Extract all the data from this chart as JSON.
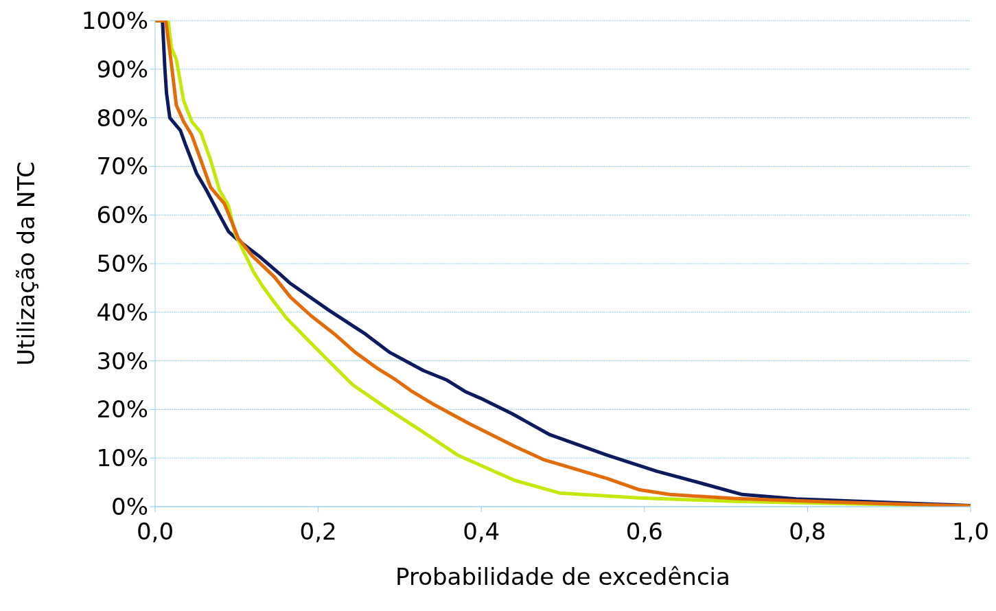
{
  "chart_data": {
    "type": "line",
    "xlabel": "Probabilidade de excedência",
    "ylabel": "Utilização da NTC",
    "xlim": [
      0,
      1
    ],
    "xticks": [
      {
        "value": 0,
        "label": "0,0"
      },
      {
        "value": 0.2,
        "label": "0,2"
      },
      {
        "value": 0.4,
        "label": "0,4"
      },
      {
        "value": 0.6,
        "label": "0,6"
      },
      {
        "value": 0.8,
        "label": "0,8"
      },
      {
        "value": 1,
        "label": "1,0"
      }
    ],
    "ylim": [
      0,
      100
    ],
    "yticks": [
      {
        "value": 0,
        "label": "0%"
      },
      {
        "value": 10,
        "label": "10%"
      },
      {
        "value": 20,
        "label": "20%"
      },
      {
        "value": 30,
        "label": "30%"
      },
      {
        "value": 40,
        "label": "40%"
      },
      {
        "value": 50,
        "label": "50%"
      },
      {
        "value": 60,
        "label": "60%"
      },
      {
        "value": 70,
        "label": "70%"
      },
      {
        "value": 80,
        "label": "80%"
      },
      {
        "value": 90,
        "label": "90%"
      },
      {
        "value": 100,
        "label": "100%"
      }
    ],
    "grid": "y",
    "series": [
      {
        "color": "#0d1a5e",
        "x": [
          0,
          0.009,
          0.012,
          0.014,
          0.018,
          0.031,
          0.037,
          0.051,
          0.062,
          0.079,
          0.09,
          0.102,
          0.127,
          0.152,
          0.166,
          0.214,
          0.258,
          0.287,
          0.329,
          0.357,
          0.38,
          0.399,
          0.438,
          0.484,
          0.554,
          0.615,
          0.67,
          0.72,
          0.786,
          0.863,
          1
        ],
        "values": [
          100,
          100,
          90,
          85,
          80,
          77.4,
          74.6,
          68.5,
          65.4,
          60,
          56.6,
          54.8,
          51.6,
          48,
          45.9,
          40.3,
          35.5,
          31.8,
          28,
          26.1,
          23.7,
          22.3,
          19.1,
          14.8,
          10.6,
          7.3,
          4.8,
          2.5,
          1.6,
          1.1,
          0.2
        ]
      },
      {
        "color": "#c4e80a",
        "x": [
          0,
          0.016,
          0.02,
          0.026,
          0.035,
          0.045,
          0.056,
          0.068,
          0.079,
          0.09,
          0.098,
          0.11,
          0.121,
          0.132,
          0.146,
          0.161,
          0.189,
          0.208,
          0.242,
          0.287,
          0.329,
          0.371,
          0.441,
          0.496,
          0.593,
          0.709,
          1
        ],
        "values": [
          100,
          100,
          94.4,
          92,
          83.5,
          79.2,
          77,
          71.3,
          65.1,
          61.9,
          56.2,
          52,
          48.2,
          45.3,
          42.1,
          38.8,
          34,
          30.8,
          25.1,
          19.9,
          15.3,
          10.6,
          5.4,
          2.8,
          1.8,
          1.1,
          0.1
        ]
      },
      {
        "color": "#e36c0a",
        "x": [
          0,
          0.013,
          0.02,
          0.026,
          0.035,
          0.045,
          0.056,
          0.068,
          0.085,
          0.093,
          0.102,
          0.119,
          0.146,
          0.166,
          0.191,
          0.22,
          0.245,
          0.273,
          0.295,
          0.315,
          0.343,
          0.385,
          0.441,
          0.476,
          0.554,
          0.593,
          0.631,
          0.709,
          0.824,
          1
        ],
        "values": [
          100,
          100,
          91,
          82.6,
          79.2,
          76.4,
          71.3,
          65.7,
          62.3,
          59,
          55.2,
          51.6,
          47.3,
          43.1,
          39.3,
          35.5,
          31.8,
          28.4,
          26.1,
          23.7,
          20.9,
          17.1,
          12.4,
          9.7,
          5.8,
          3.5,
          2.5,
          1.7,
          1.0,
          0.1
        ]
      }
    ]
  }
}
